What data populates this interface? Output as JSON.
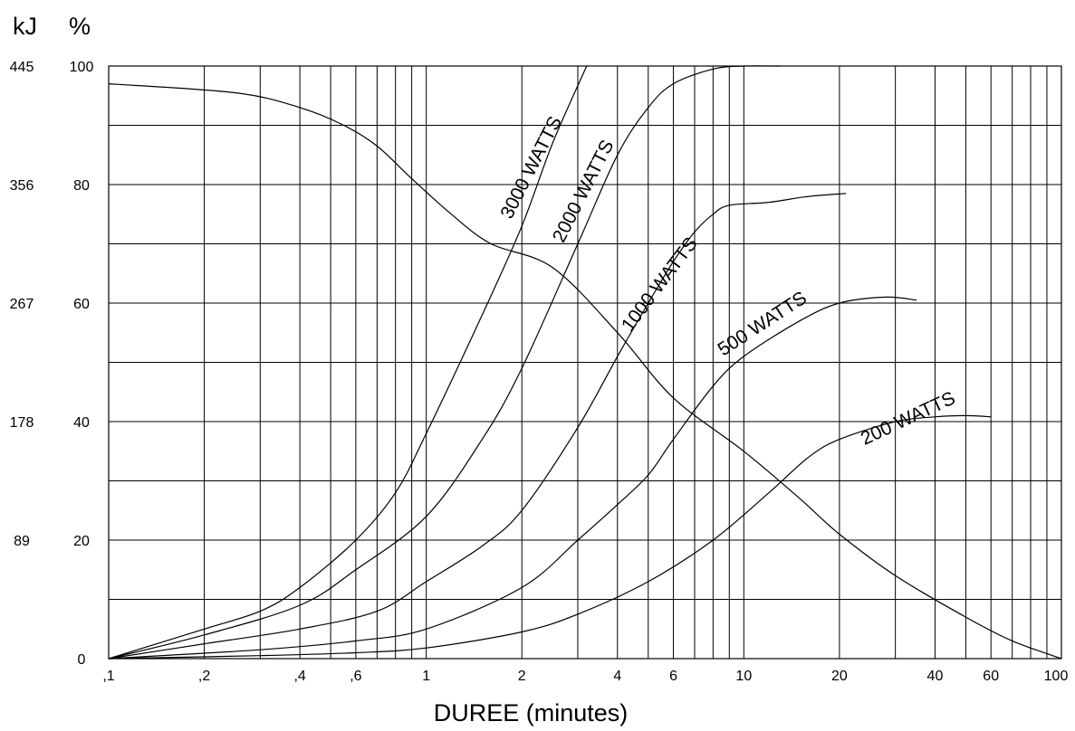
{
  "chart_data": {
    "type": "line",
    "x_scale": "log",
    "xlim": [
      0.1,
      100
    ],
    "ylim": [
      0,
      100
    ],
    "xlabel": "DUREE (minutes)",
    "y_unit_left": "kJ",
    "y_unit_right": "%",
    "y_ticks_percent": [
      "100",
      "80",
      "60",
      "40",
      "20",
      "0"
    ],
    "y_ticks_kj": [
      "445",
      "356",
      "267",
      "178",
      "89"
    ],
    "x_ticks": [
      {
        "v": 0.1,
        "label": ",1"
      },
      {
        "v": 0.2,
        "label": ",2"
      },
      {
        "v": 0.4,
        "label": ",4"
      },
      {
        "v": 0.6,
        "label": ",6"
      },
      {
        "v": 1,
        "label": "1"
      },
      {
        "v": 2,
        "label": "2"
      },
      {
        "v": 4,
        "label": "4"
      },
      {
        "v": 6,
        "label": "6"
      },
      {
        "v": 10,
        "label": "10"
      },
      {
        "v": 20,
        "label": "20"
      },
      {
        "v": 40,
        "label": "40"
      },
      {
        "v": 60,
        "label": "60"
      },
      {
        "v": 100,
        "label": "100"
      }
    ],
    "grid": true,
    "series": [
      {
        "name": "3000 WATTS",
        "x": [
          0.1,
          0.2,
          0.3,
          0.4,
          0.6,
          0.8,
          1,
          1.5,
          2,
          2.5,
          3.2
        ],
        "y": [
          0,
          5,
          8,
          12,
          20,
          28,
          38,
          58,
          73,
          87,
          100
        ]
      },
      {
        "name": "2000 WATTS",
        "x": [
          0.1,
          0.2,
          0.4,
          0.6,
          1,
          1.5,
          2,
          3,
          4,
          5,
          6,
          8,
          10,
          13
        ],
        "y": [
          0,
          4,
          9,
          15,
          24,
          37,
          49,
          70,
          85,
          93,
          97,
          99.5,
          100,
          100
        ]
      },
      {
        "name": "1000 WATTS",
        "x": [
          0.1,
          0.2,
          0.4,
          0.7,
          1,
          1.5,
          2,
          3,
          4,
          5,
          6,
          7,
          8,
          9,
          12,
          16,
          21
        ],
        "y": [
          0,
          2.5,
          5,
          8,
          13,
          19,
          25,
          39,
          51,
          60,
          67,
          72,
          75,
          76.5,
          77,
          78,
          78.5
        ]
      },
      {
        "name": "500 WATTS",
        "x": [
          0.1,
          0.3,
          0.6,
          1,
          2,
          3,
          4,
          5,
          6,
          8,
          10,
          15,
          20,
          28,
          35
        ],
        "y": [
          0,
          1.5,
          3,
          5,
          12,
          20,
          26,
          31,
          37,
          46,
          51,
          57,
          60,
          61,
          60.5
        ]
      },
      {
        "name": "200 WATTS",
        "x": [
          0.1,
          0.3,
          0.6,
          1,
          2,
          3,
          5,
          8,
          12,
          16,
          20,
          30,
          40,
          50,
          60
        ],
        "y": [
          0,
          0.5,
          1,
          1.8,
          4.5,
          7.5,
          13,
          20,
          28,
          34,
          37,
          40,
          40.8,
          41,
          40.8
        ]
      },
      {
        "x": [
          0.1,
          0.25,
          0.4,
          0.55,
          0.7,
          0.9,
          1.2,
          1.6,
          2.5,
          4,
          6,
          10,
          15,
          20,
          30,
          50,
          70,
          100
        ],
        "y": [
          97,
          95.5,
          93,
          90,
          86.5,
          81,
          75,
          70,
          66,
          55,
          44,
          35,
          27,
          21,
          14,
          7,
          3,
          0
        ]
      }
    ]
  }
}
